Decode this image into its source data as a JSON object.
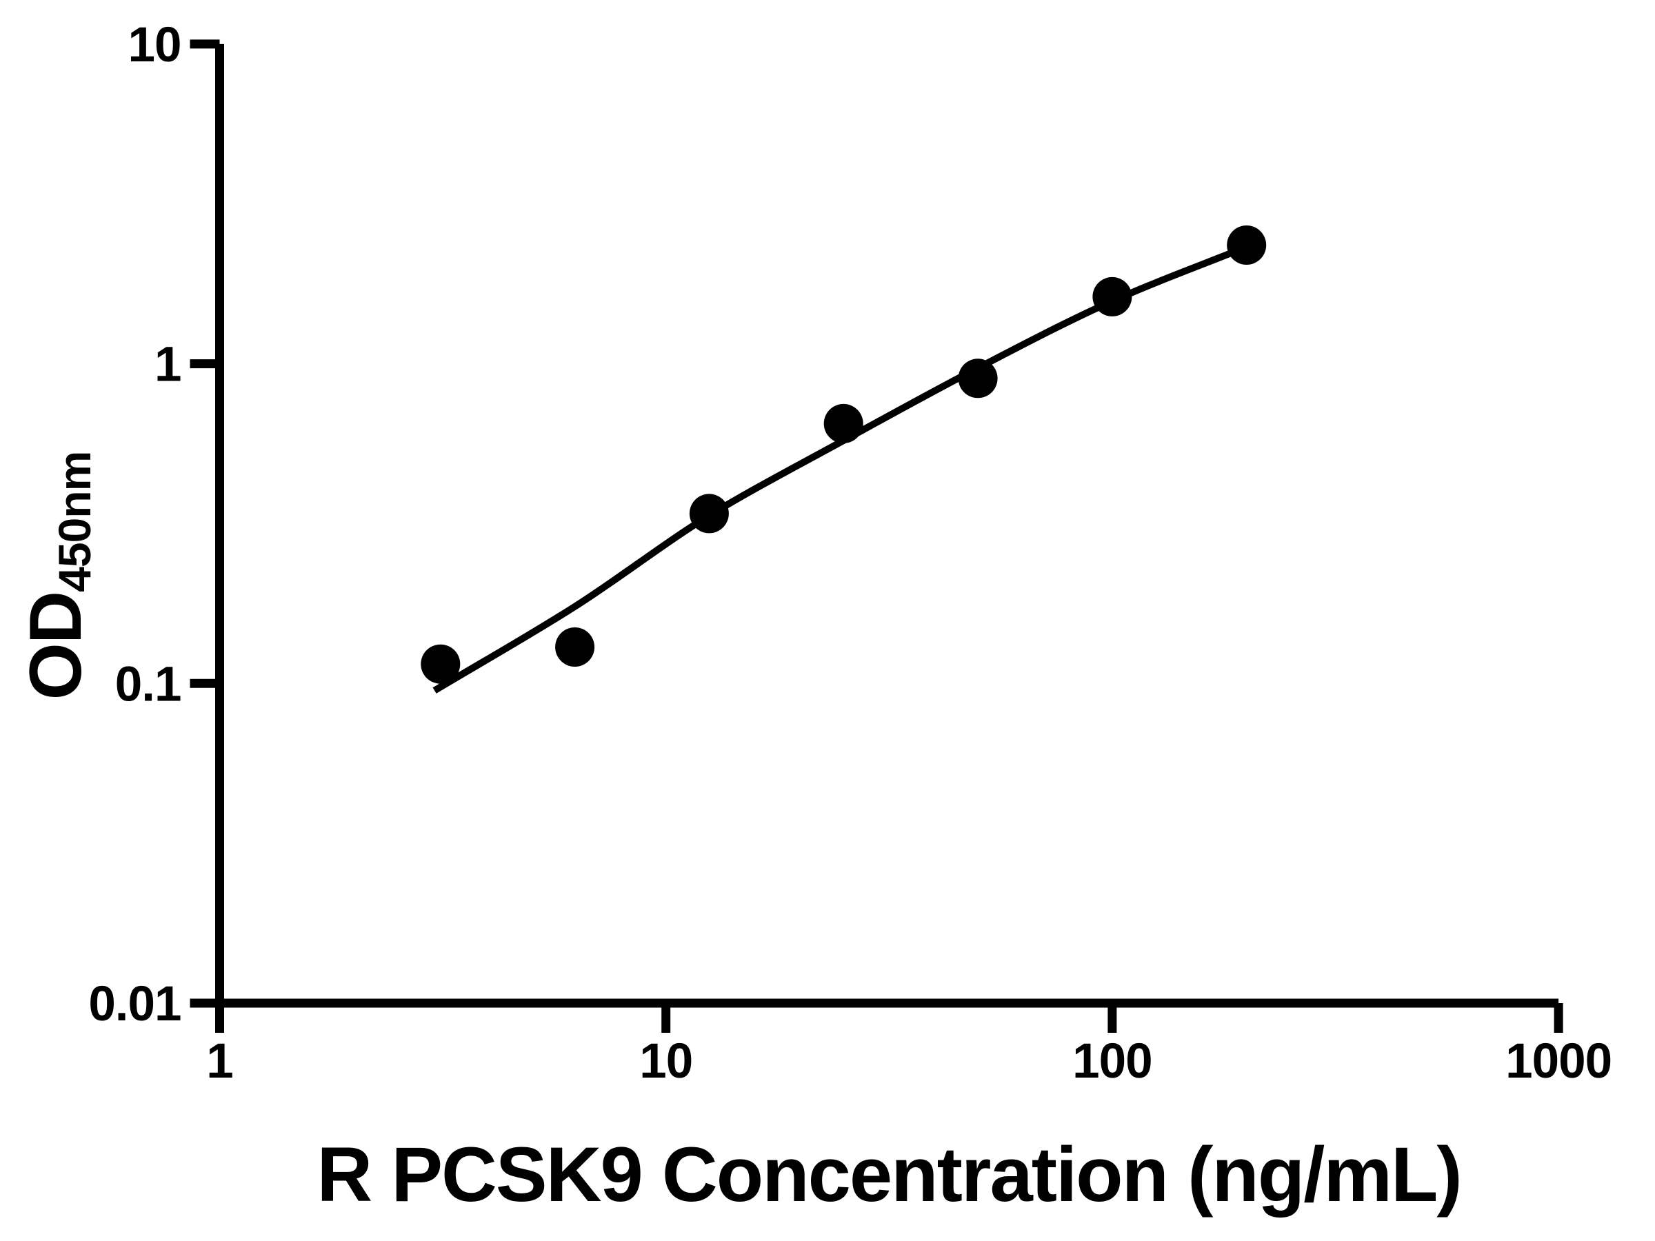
{
  "figure": {
    "background_color": "#ffffff",
    "ink_color": "#000000"
  },
  "chart_data": {
    "type": "scatter",
    "fit_line": true,
    "title": "",
    "xlabel": "R PCSK9 Concentration (ng/mL)",
    "ylabel": "OD450nm",
    "ylabel_main": "OD",
    "ylabel_sub": "450nm",
    "x_scale": "log10",
    "y_scale": "log10",
    "xlim": [
      1,
      1000
    ],
    "ylim": [
      0.01,
      10
    ],
    "grid": false,
    "legend": "none",
    "x_ticks": [
      {
        "value": 1,
        "label": "1"
      },
      {
        "value": 10,
        "label": "10"
      },
      {
        "value": 100,
        "label": "100"
      },
      {
        "value": 1000,
        "label": "1000"
      }
    ],
    "y_ticks": [
      {
        "value": 0.01,
        "label": "0.01"
      },
      {
        "value": 0.1,
        "label": "0.1"
      },
      {
        "value": 1,
        "label": "1"
      },
      {
        "value": 10,
        "label": "10"
      }
    ],
    "points": [
      {
        "x": 3.125,
        "y": 0.115
      },
      {
        "x": 6.25,
        "y": 0.13
      },
      {
        "x": 12.5,
        "y": 0.34
      },
      {
        "x": 25,
        "y": 0.65
      },
      {
        "x": 50,
        "y": 0.9
      },
      {
        "x": 100,
        "y": 1.62
      },
      {
        "x": 200,
        "y": 2.35
      }
    ],
    "fit_curve_anchors": [
      {
        "x": 3.03,
        "y": 0.095
      },
      {
        "x": 6.25,
        "y": 0.174
      },
      {
        "x": 12.5,
        "y": 0.335
      },
      {
        "x": 25,
        "y": 0.575
      },
      {
        "x": 50,
        "y": 0.97
      },
      {
        "x": 100,
        "y": 1.57
      },
      {
        "x": 200,
        "y": 2.32
      }
    ]
  }
}
